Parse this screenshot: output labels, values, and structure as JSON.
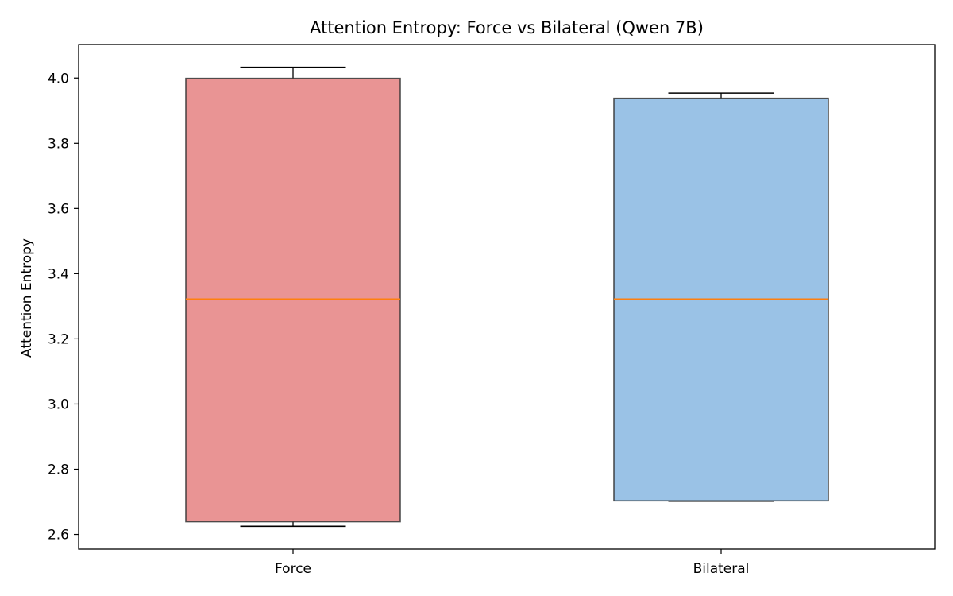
{
  "chart_data": {
    "type": "box",
    "title": "Attention Entropy: Force vs Bilateral (Qwen 7B)",
    "xlabel": "",
    "ylabel": "Attention Entropy",
    "ylim": [
      2.555,
      4.103
    ],
    "yticks": [
      2.6,
      2.8,
      3.0,
      3.2,
      3.4,
      3.6,
      3.8,
      4.0
    ],
    "ytick_labels": [
      "2.6",
      "2.8",
      "3.0",
      "3.2",
      "3.4",
      "3.6",
      "3.8",
      "4.0"
    ],
    "categories": [
      "Force",
      "Bilateral"
    ],
    "boxes": [
      {
        "name": "Force",
        "whisker_low": 2.625,
        "q1": 2.639,
        "median": 3.322,
        "q3": 3.999,
        "whisker_high": 4.033,
        "color": "#e06666"
      },
      {
        "name": "Bilateral",
        "whisker_low": 2.702,
        "q1": 2.703,
        "median": 3.322,
        "q3": 3.938,
        "whisker_high": 3.954,
        "color": "#6fa8dc"
      }
    ],
    "median_color": "#ff7f0e",
    "grid": false,
    "legend": "none"
  }
}
